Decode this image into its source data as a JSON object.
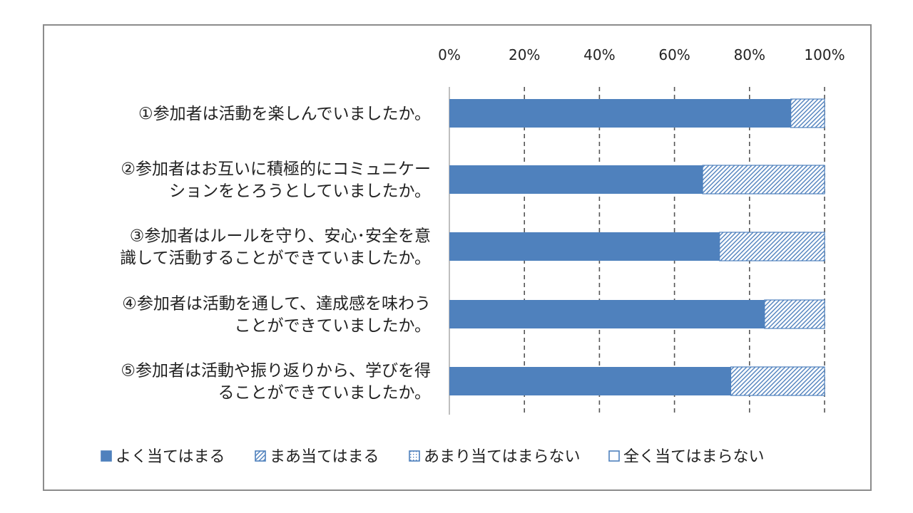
{
  "colors": {
    "solid": "#4f81bd",
    "hatch": "#4f81bd",
    "grid": "#555555",
    "axis": "#bfbfbf",
    "frame": "#8c8c8c",
    "legend_border": "#4f81bd"
  },
  "chart_data": {
    "type": "bar",
    "orientation": "horizontal",
    "stacked": "percent",
    "categories": [
      [
        "①参加者は活動を楽しんでいましたか。"
      ],
      [
        "②参加者はお互いに積極的にコミュニケー",
        "ションをとろうとしていましたか。"
      ],
      [
        "③参加者はルールを守り、安心･安全を意",
        "識して活動することができていましたか。"
      ],
      [
        "④参加者は活動を通して、達成感を味わう",
        "ことができていましたか。"
      ],
      [
        "⑤参加者は活動や振り返りから、学びを得",
        "ることができていましたか。"
      ]
    ],
    "series": [
      {
        "name": "よく当てはまる",
        "style": "solid",
        "values": [
          91,
          67.5,
          72,
          84,
          75
        ]
      },
      {
        "name": "まあ当てはまる",
        "style": "hatch",
        "values": [
          9,
          32.5,
          28,
          16,
          25
        ]
      },
      {
        "name": "あまり当てはまらない",
        "style": "dotted",
        "values": [
          0,
          0,
          0,
          0,
          0
        ]
      },
      {
        "name": "全く当てはまらない",
        "style": "empty",
        "values": [
          0,
          0,
          0,
          0,
          0
        ]
      }
    ],
    "x_ticks": [
      "0%",
      "20%",
      "40%",
      "60%",
      "80%",
      "100%"
    ],
    "xlim": [
      0,
      100
    ],
    "grid": true,
    "grid_style": "dashed",
    "legend_position": "bottom",
    "xaxis_position": "top"
  }
}
